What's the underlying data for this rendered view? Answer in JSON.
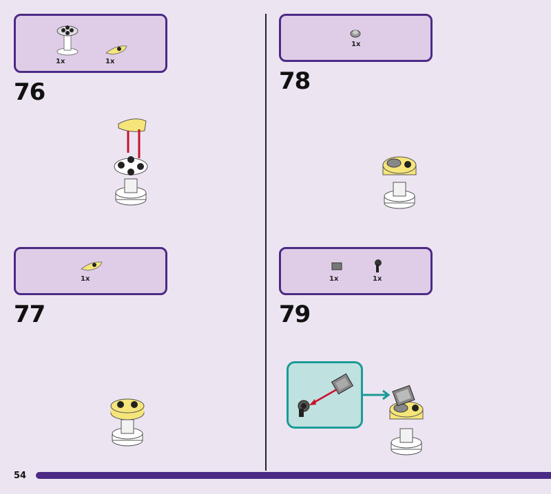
{
  "page_number": "54",
  "steps": [
    {
      "number": "76",
      "parts": [
        {
          "name": "round-plate-on-stand",
          "qty": "1x"
        },
        {
          "name": "yellow-curved-plate",
          "qty": "1x"
        }
      ]
    },
    {
      "number": "77",
      "parts": [
        {
          "name": "yellow-curved-plate",
          "qty": "1x"
        }
      ]
    },
    {
      "number": "78",
      "parts": [
        {
          "name": "grey-round-tile",
          "qty": "1x"
        }
      ]
    },
    {
      "number": "79",
      "parts": [
        {
          "name": "grey-printed-tile",
          "qty": "1x"
        },
        {
          "name": "black-clip",
          "qty": "1x"
        }
      ]
    }
  ],
  "colors": {
    "background": "#ede4f1",
    "panel": "#dfcde7",
    "panel_border": "#4b2a85",
    "callout_border": "#1a9b96",
    "callout_fill": "#bfe1df",
    "arrow": "#c8102e",
    "brick_yellow": "#f5e57a"
  }
}
